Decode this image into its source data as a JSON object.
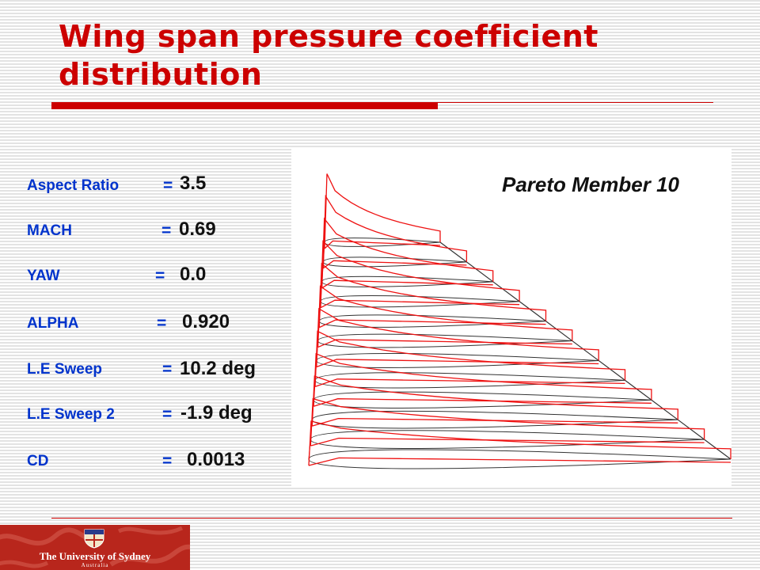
{
  "slide": {
    "title": "Wing span pressure coefficient distribution",
    "accent_color": "#cc0000",
    "label_color": "#0033cc"
  },
  "parameters": [
    {
      "label": "Aspect Ratio",
      "eq": "=",
      "value": "3.5"
    },
    {
      "label": "MACH",
      "eq": "=",
      "value": "0.69"
    },
    {
      "label": "YAW",
      "eq": "=",
      "value": "0.0"
    },
    {
      "label": "ALPHA",
      "eq": "=",
      "value": "0.920"
    },
    {
      "label": "L.E Sweep",
      "eq": "=",
      "value": "10.2 deg"
    },
    {
      "label": "L.E Sweep 2",
      "eq": "=",
      "value": "-1.9 deg"
    },
    {
      "label": "CD",
      "eq": "=",
      "value": "0.0013"
    }
  ],
  "figure": {
    "caption": "Pareto Member 10",
    "section_count": 12,
    "cp_curve_color": "#ee1111",
    "outline_color": "#333333"
  },
  "logo": {
    "name": "The University of Sydney",
    "country": "Australia",
    "background": "#b8261c"
  }
}
